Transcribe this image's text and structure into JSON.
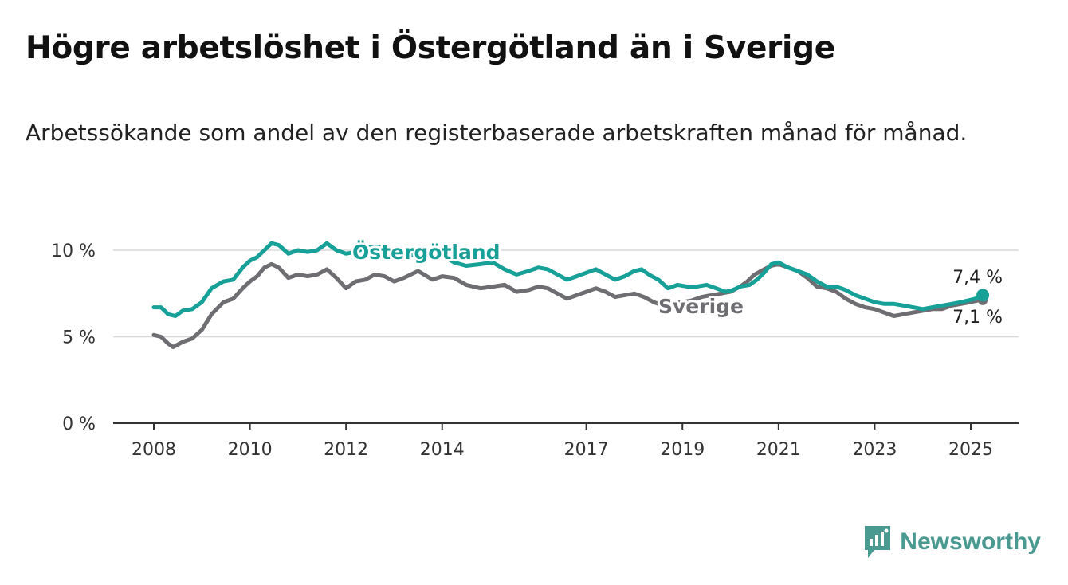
{
  "title": "Högre arbetslöshet i Östergötland än i Sverige",
  "subtitle": "Arbetssökande som andel av den registerbaserade arbetskraften månad för månad.",
  "brand": {
    "name": "Newsworthy",
    "icon": "bar-chart-speech-bubble-icon",
    "color": "#4a9a92"
  },
  "colors": {
    "ostergotland": "#17a097",
    "sverige": "#6e6e72",
    "grid": "#d8d8d8",
    "axis": "#333333"
  },
  "chart_data": {
    "type": "line",
    "ylim": [
      0,
      10
    ],
    "xlim": [
      2007.7,
      2026.0
    ],
    "y_ticks": [
      {
        "value": 10,
        "label": "10 %"
      },
      {
        "value": 5,
        "label": "5 %"
      },
      {
        "value": 0,
        "label": "0 %"
      }
    ],
    "x_ticks": [
      {
        "value": 2008,
        "label": "2008"
      },
      {
        "value": 2010,
        "label": "2010"
      },
      {
        "value": 2012,
        "label": "2012"
      },
      {
        "value": 2014,
        "label": "2014"
      },
      {
        "value": 2017,
        "label": "2017"
      },
      {
        "value": 2019,
        "label": "2019"
      },
      {
        "value": 2021,
        "label": "2021"
      },
      {
        "value": 2023,
        "label": "2023"
      },
      {
        "value": 2025,
        "label": "2025"
      }
    ],
    "grid": true,
    "series": [
      {
        "name": "Östergötland",
        "key": "ostergotland",
        "end_label": "7,4 %",
        "points": [
          [
            2008.0,
            6.7
          ],
          [
            2008.15,
            6.7
          ],
          [
            2008.3,
            6.3
          ],
          [
            2008.45,
            6.2
          ],
          [
            2008.6,
            6.5
          ],
          [
            2008.8,
            6.6
          ],
          [
            2009.0,
            7.0
          ],
          [
            2009.2,
            7.8
          ],
          [
            2009.45,
            8.2
          ],
          [
            2009.65,
            8.3
          ],
          [
            2009.85,
            9.0
          ],
          [
            2010.0,
            9.4
          ],
          [
            2010.15,
            9.6
          ],
          [
            2010.3,
            10.0
          ],
          [
            2010.45,
            10.4
          ],
          [
            2010.6,
            10.3
          ],
          [
            2010.8,
            9.8
          ],
          [
            2011.0,
            10.0
          ],
          [
            2011.2,
            9.9
          ],
          [
            2011.4,
            10.0
          ],
          [
            2011.6,
            10.4
          ],
          [
            2011.8,
            10.0
          ],
          [
            2012.0,
            9.8
          ],
          [
            2012.2,
            9.9
          ],
          [
            2012.45,
            10.2
          ],
          [
            2012.7,
            10.2
          ],
          [
            2012.9,
            10.0
          ],
          [
            2013.2,
            9.8
          ],
          [
            2013.5,
            9.7
          ],
          [
            2013.8,
            9.6
          ],
          [
            2014.0,
            9.7
          ],
          [
            2014.25,
            9.3
          ],
          [
            2014.5,
            9.1
          ],
          [
            2014.8,
            9.2
          ],
          [
            2015.05,
            9.3
          ],
          [
            2015.3,
            8.9
          ],
          [
            2015.55,
            8.6
          ],
          [
            2015.8,
            8.8
          ],
          [
            2016.0,
            9.0
          ],
          [
            2016.2,
            8.9
          ],
          [
            2016.4,
            8.6
          ],
          [
            2016.6,
            8.3
          ],
          [
            2016.8,
            8.5
          ],
          [
            2017.0,
            8.7
          ],
          [
            2017.2,
            8.9
          ],
          [
            2017.4,
            8.6
          ],
          [
            2017.6,
            8.3
          ],
          [
            2017.8,
            8.5
          ],
          [
            2018.0,
            8.8
          ],
          [
            2018.15,
            8.9
          ],
          [
            2018.3,
            8.6
          ],
          [
            2018.5,
            8.3
          ],
          [
            2018.7,
            7.8
          ],
          [
            2018.9,
            8.0
          ],
          [
            2019.1,
            7.9
          ],
          [
            2019.3,
            7.9
          ],
          [
            2019.5,
            8.0
          ],
          [
            2019.7,
            7.8
          ],
          [
            2019.9,
            7.6
          ],
          [
            2020.05,
            7.7
          ],
          [
            2020.2,
            7.9
          ],
          [
            2020.4,
            8.0
          ],
          [
            2020.55,
            8.3
          ],
          [
            2020.7,
            8.7
          ],
          [
            2020.85,
            9.2
          ],
          [
            2021.0,
            9.3
          ],
          [
            2021.2,
            9.0
          ],
          [
            2021.4,
            8.8
          ],
          [
            2021.6,
            8.6
          ],
          [
            2021.8,
            8.2
          ],
          [
            2022.0,
            7.9
          ],
          [
            2022.2,
            7.9
          ],
          [
            2022.4,
            7.7
          ],
          [
            2022.6,
            7.4
          ],
          [
            2022.8,
            7.2
          ],
          [
            2023.0,
            7.0
          ],
          [
            2023.2,
            6.9
          ],
          [
            2023.4,
            6.9
          ],
          [
            2023.6,
            6.8
          ],
          [
            2023.8,
            6.7
          ],
          [
            2024.0,
            6.6
          ],
          [
            2024.2,
            6.7
          ],
          [
            2024.4,
            6.8
          ],
          [
            2024.6,
            6.9
          ],
          [
            2024.8,
            7.0
          ],
          [
            2024.95,
            7.1
          ],
          [
            2025.1,
            7.2
          ],
          [
            2025.25,
            7.4
          ]
        ]
      },
      {
        "name": "Sverige",
        "key": "sverige",
        "end_label": "7,1 %",
        "points": [
          [
            2008.0,
            5.1
          ],
          [
            2008.15,
            5.0
          ],
          [
            2008.3,
            4.6
          ],
          [
            2008.4,
            4.4
          ],
          [
            2008.6,
            4.7
          ],
          [
            2008.8,
            4.9
          ],
          [
            2009.0,
            5.4
          ],
          [
            2009.2,
            6.3
          ],
          [
            2009.45,
            7.0
          ],
          [
            2009.65,
            7.2
          ],
          [
            2009.85,
            7.8
          ],
          [
            2010.0,
            8.2
          ],
          [
            2010.15,
            8.5
          ],
          [
            2010.3,
            9.0
          ],
          [
            2010.45,
            9.2
          ],
          [
            2010.6,
            9.0
          ],
          [
            2010.8,
            8.4
          ],
          [
            2011.0,
            8.6
          ],
          [
            2011.2,
            8.5
          ],
          [
            2011.4,
            8.6
          ],
          [
            2011.6,
            8.9
          ],
          [
            2011.8,
            8.4
          ],
          [
            2012.0,
            7.8
          ],
          [
            2012.2,
            8.2
          ],
          [
            2012.4,
            8.3
          ],
          [
            2012.6,
            8.6
          ],
          [
            2012.8,
            8.5
          ],
          [
            2013.0,
            8.2
          ],
          [
            2013.2,
            8.4
          ],
          [
            2013.5,
            8.8
          ],
          [
            2013.8,
            8.3
          ],
          [
            2014.0,
            8.5
          ],
          [
            2014.25,
            8.4
          ],
          [
            2014.5,
            8.0
          ],
          [
            2014.8,
            7.8
          ],
          [
            2015.05,
            7.9
          ],
          [
            2015.3,
            8.0
          ],
          [
            2015.55,
            7.6
          ],
          [
            2015.8,
            7.7
          ],
          [
            2016.0,
            7.9
          ],
          [
            2016.2,
            7.8
          ],
          [
            2016.4,
            7.5
          ],
          [
            2016.6,
            7.2
          ],
          [
            2016.8,
            7.4
          ],
          [
            2017.0,
            7.6
          ],
          [
            2017.2,
            7.8
          ],
          [
            2017.4,
            7.6
          ],
          [
            2017.6,
            7.3
          ],
          [
            2017.8,
            7.4
          ],
          [
            2018.0,
            7.5
          ],
          [
            2018.2,
            7.3
          ],
          [
            2018.4,
            7.0
          ],
          [
            2018.6,
            6.8
          ],
          [
            2018.8,
            7.0
          ],
          [
            2019.0,
            7.0
          ],
          [
            2019.2,
            7.1
          ],
          [
            2019.4,
            7.3
          ],
          [
            2019.6,
            7.4
          ],
          [
            2019.8,
            7.5
          ],
          [
            2020.0,
            7.6
          ],
          [
            2020.2,
            7.9
          ],
          [
            2020.35,
            8.2
          ],
          [
            2020.5,
            8.6
          ],
          [
            2020.7,
            8.9
          ],
          [
            2020.85,
            9.1
          ],
          [
            2021.0,
            9.2
          ],
          [
            2021.2,
            9.0
          ],
          [
            2021.4,
            8.8
          ],
          [
            2021.6,
            8.4
          ],
          [
            2021.8,
            7.9
          ],
          [
            2022.0,
            7.8
          ],
          [
            2022.2,
            7.6
          ],
          [
            2022.4,
            7.2
          ],
          [
            2022.6,
            6.9
          ],
          [
            2022.8,
            6.7
          ],
          [
            2023.0,
            6.6
          ],
          [
            2023.2,
            6.4
          ],
          [
            2023.4,
            6.2
          ],
          [
            2023.6,
            6.3
          ],
          [
            2023.8,
            6.4
          ],
          [
            2024.0,
            6.5
          ],
          [
            2024.2,
            6.6
          ],
          [
            2024.4,
            6.6
          ],
          [
            2024.6,
            6.8
          ],
          [
            2024.8,
            6.9
          ],
          [
            2025.0,
            7.0
          ],
          [
            2025.15,
            7.1
          ],
          [
            2025.25,
            7.1
          ]
        ]
      }
    ]
  }
}
